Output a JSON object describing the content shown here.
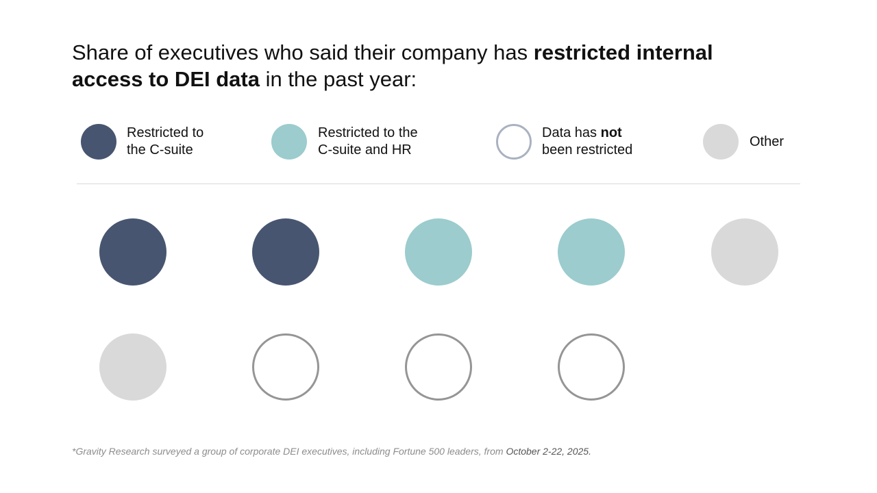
{
  "title": {
    "part1": "Share of executives who said their company has ",
    "bold1": "restricted internal access to DEI data",
    "part2": " in the past year:"
  },
  "legend": [
    {
      "key": "csuite",
      "line1": "Restricted to",
      "line2": "the C-suite",
      "color": "#475570",
      "hollow": false
    },
    {
      "key": "csuite_hr",
      "line1": "Restricted to the",
      "line2": "C-suite and HR",
      "color": "#9ccccd",
      "hollow": false
    },
    {
      "key": "not_restricted",
      "line1_pre": "Data has ",
      "line1_bold": "not",
      "line2": "been restricted",
      "color": "#aab2c0",
      "hollow": true
    },
    {
      "key": "other",
      "line1": "Other",
      "color": "#d9d9d9",
      "hollow": false
    }
  ],
  "chart_data": {
    "type": "waffle",
    "categories": [
      "Restricted to the C-suite",
      "Restricted to the C-suite and HR",
      "Data has not been restricted",
      "Other"
    ],
    "values": [
      2,
      2,
      3,
      2
    ],
    "total": 9,
    "colors": {
      "csuite": "#475570",
      "csuite_hr": "#9ccccd",
      "not_restricted_outline": "#959595",
      "other": "#d9d9d9"
    },
    "dots": [
      "csuite",
      "csuite",
      "csuite_hr",
      "csuite_hr",
      "other",
      "other",
      "not_restricted",
      "not_restricted",
      "not_restricted"
    ]
  },
  "footnote": {
    "text": "*Gravity Research surveyed a group of corporate DEI executives, including Fortune 500 leaders, from ",
    "date": "October 2-22, 2025."
  }
}
